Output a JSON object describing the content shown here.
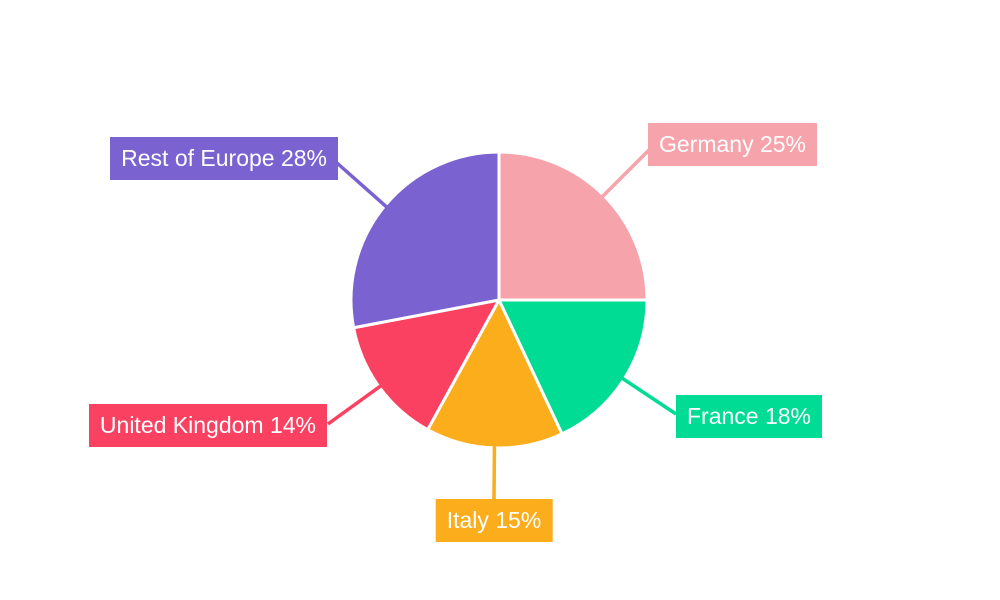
{
  "chart_data": {
    "type": "pie",
    "title": "",
    "unit": "%",
    "direction": "clockwise",
    "start_angle_deg": 0,
    "legend": "none",
    "background_color": "#FFFFFF",
    "label_text_color": "#FFFFFF",
    "slice_border_color": "#FFFFFF",
    "slices": [
      {
        "name": "Germany",
        "value": 25,
        "display": "Germany 25%",
        "color": "#F7A3AB"
      },
      {
        "name": "France",
        "value": 18,
        "display": "France 18%",
        "color": "#00DC94"
      },
      {
        "name": "Italy",
        "value": 15,
        "display": "Italy 15%",
        "color": "#FBAD1B"
      },
      {
        "name": "United Kingdom",
        "value": 14,
        "display": "United Kingdom 14%",
        "color": "#FB4161"
      },
      {
        "name": "Rest of Europe",
        "value": 28,
        "display": "Rest of Europe 28%",
        "color": "#7A62D0"
      }
    ]
  }
}
